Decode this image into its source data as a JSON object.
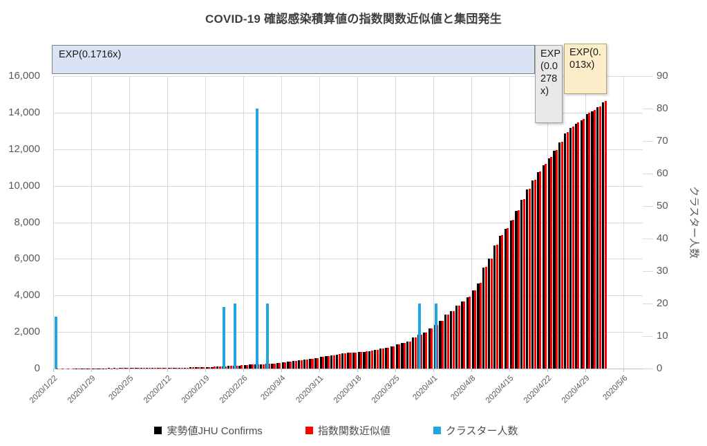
{
  "title": "COVID-19 確認感染積算値の指数関数近似値と集団発生",
  "annotations": {
    "phase1": {
      "text": "EXP(0.1716x)",
      "fill": "#DAE3F3",
      "border": "#7F7F7F"
    },
    "phase2": {
      "text": "EXP(0.0278x)",
      "fill": "#E9E9E9",
      "border": "#A0A0A0"
    },
    "phase3": {
      "text": "EXP(0.013x)",
      "fill": "#FCEECB",
      "border": "#B3A272"
    }
  },
  "left_axis": {
    "min": 0,
    "max": 16000,
    "step": 2000,
    "tick_labels": [
      "0",
      "2,000",
      "4,000",
      "6,000",
      "8,000",
      "10,000",
      "12,000",
      "14,000",
      "16,000"
    ]
  },
  "right_axis": {
    "title": "クラスター人数",
    "min": 0,
    "max": 90,
    "step": 10,
    "tick_labels": [
      "0",
      "10",
      "20",
      "30",
      "40",
      "50",
      "60",
      "70",
      "80",
      "90"
    ]
  },
  "x_axis": {
    "tick_labels": [
      "2020/1/22",
      "2020/1/29",
      "2020/2/5",
      "2020/2/12",
      "2020/2/19",
      "2020/2/26",
      "2020/3/4",
      "2020/3/11",
      "2020/3/18",
      "2020/3/25",
      "2020/4/1",
      "2020/4/8",
      "2020/4/15",
      "2020/4/22",
      "2020/4/29",
      "2020/5/6"
    ]
  },
  "legend": {
    "items": [
      {
        "label": "実勢値JHU Confirms",
        "color": "#000000"
      },
      {
        "label": "指数関数近似値",
        "color": "#FF0000"
      },
      {
        "label": "クラスター人数",
        "color": "#1EA7E0"
      }
    ]
  },
  "colors": {
    "gridline": "#D9D9D9",
    "axis_line": "#BFBFBF",
    "axis_text": "#595959"
  },
  "chart_data": {
    "type": "bar",
    "title": "COVID-19 確認感染積算値の指数関数近似値と集団発生",
    "start_date": "2020/1/22",
    "end_date": "2020/5/2",
    "frequency": "daily",
    "x_tick_labels": [
      "2020/1/22",
      "2020/1/29",
      "2020/2/5",
      "2020/2/12",
      "2020/2/19",
      "2020/2/26",
      "2020/3/4",
      "2020/3/11",
      "2020/3/18",
      "2020/3/25",
      "2020/4/1",
      "2020/4/8",
      "2020/4/15",
      "2020/4/22",
      "2020/4/29",
      "2020/5/6"
    ],
    "left_ylim": [
      0,
      16000
    ],
    "right_ylim": [
      0,
      90
    ],
    "right_axis_label": "クラスター人数",
    "grid": true,
    "legend_position": "bottom",
    "annotations": [
      "EXP(0.1716x)",
      "EXP(0.0278x)",
      "EXP(0.013x)"
    ],
    "series": [
      {
        "name": "実勢値JHU Confirms",
        "color": "#000000",
        "axis": "left",
        "values": [
          2,
          2,
          2,
          2,
          4,
          4,
          7,
          7,
          11,
          15,
          20,
          20,
          20,
          22,
          22,
          22,
          25,
          25,
          26,
          26,
          26,
          28,
          28,
          29,
          43,
          59,
          66,
          74,
          84,
          94,
          105,
          122,
          147,
          159,
          170,
          189,
          214,
          228,
          241,
          256,
          274,
          293,
          331,
          360,
          420,
          461,
          502,
          511,
          581,
          639,
          675,
          701,
          773,
          839,
          853,
          878,
          889,
          924,
          963,
          1007,
          1086,
          1128,
          1193,
          1307,
          1387,
          1468,
          1693,
          1866,
          1953,
          2178,
          2381,
          2617,
          2935,
          3139,
          3431,
          3654,
          3906,
          4257,
          4667,
          5530,
          6005,
          6748,
          7255,
          7645,
          8100,
          8626,
          9231,
          9787,
          10296,
          10751,
          11135,
          11512,
          11919,
          12368,
          12868,
          13182,
          13385,
          13576,
          13929,
          14088,
          14281,
          14571
        ]
      },
      {
        "name": "指数関数近似値",
        "color": "#FF0000",
        "axis": "left",
        "values": [
          3,
          3,
          4,
          4,
          5,
          5,
          6,
          7,
          9,
          12,
          15,
          17,
          19,
          21,
          23,
          25,
          27,
          28,
          29,
          30,
          31,
          33,
          36,
          40,
          48,
          58,
          66,
          75,
          86,
          97,
          110,
          125,
          143,
          158,
          172,
          192,
          215,
          230,
          244,
          259,
          277,
          296,
          333,
          363,
          422,
          463,
          504,
          515,
          584,
          642,
          678,
          705,
          776,
          842,
          855,
          880,
          893,
          928,
          967,
          1012,
          1090,
          1133,
          1198,
          1312,
          1392,
          1474,
          1698,
          1872,
          1960,
          2185,
          2390,
          2625,
          2945,
          3150,
          3442,
          3668,
          3920,
          4272,
          4685,
          5550,
          6027,
          6772,
          7282,
          7672,
          8130,
          8660,
          9265,
          9825,
          10335,
          10790,
          11180,
          11560,
          11970,
          12420,
          12920,
          13240,
          13450,
          13640,
          13990,
          14150,
          14350,
          14650
        ]
      },
      {
        "name": "クラスター人数",
        "color": "#1EA7E0",
        "axis": "right",
        "points": [
          {
            "date": "2020/1/22",
            "day": 0,
            "value": 16
          },
          {
            "date": "2020/2/22",
            "day": 31,
            "value": 19
          },
          {
            "date": "2020/2/24",
            "day": 33,
            "value": 20
          },
          {
            "date": "2020/2/28",
            "day": 37,
            "value": 80
          },
          {
            "date": "2020/3/1",
            "day": 39,
            "value": 20
          },
          {
            "date": "2020/3/29",
            "day": 67,
            "value": 20
          },
          {
            "date": "2020/4/1",
            "day": 70,
            "value": 20
          }
        ]
      }
    ]
  }
}
